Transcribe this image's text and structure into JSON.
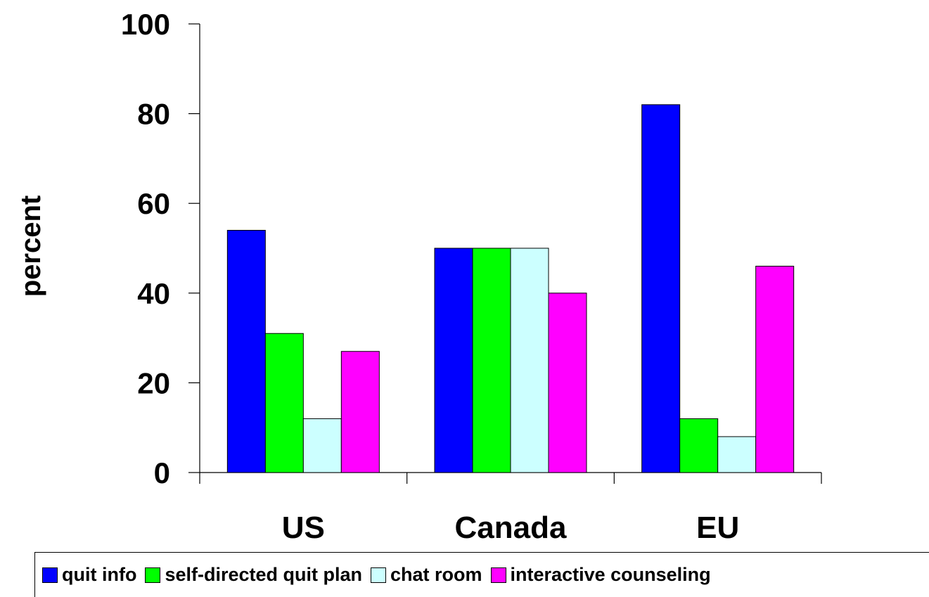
{
  "chart_data": {
    "type": "bar",
    "title": "",
    "xlabel": "",
    "ylabel": "percent",
    "ylim": [
      0,
      100
    ],
    "yticks": [
      "0",
      "20",
      "40",
      "60",
      "80",
      "100"
    ],
    "grid": false,
    "legend_position": "bottom",
    "categories": [
      "US",
      "Canada",
      "EU"
    ],
    "series": [
      {
        "name": "quit info",
        "color": "#0000ff",
        "values": [
          54,
          50,
          82
        ]
      },
      {
        "name": "self-directed quit plan",
        "color": "#00ff00",
        "values": [
          31,
          50,
          12
        ]
      },
      {
        "name": "chat room",
        "color": "#ccffff",
        "values": [
          12,
          50,
          8
        ]
      },
      {
        "name": "interactive counseling",
        "color": "#ff00ff",
        "values": [
          27,
          40,
          46
        ]
      }
    ]
  }
}
